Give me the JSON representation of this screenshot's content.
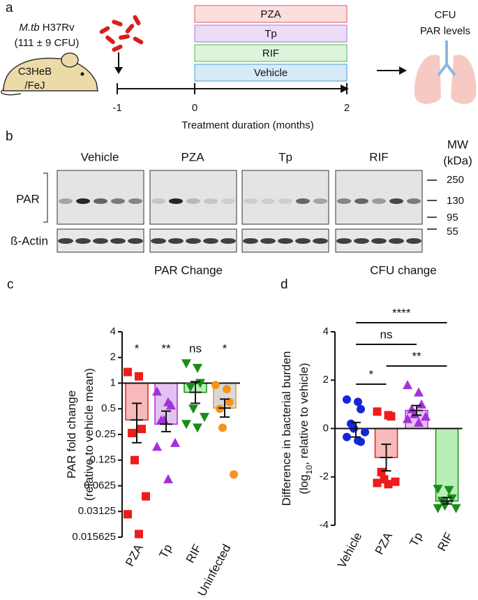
{
  "panel_a": {
    "label": "a",
    "strain_italic": "M.tb",
    "strain": " H37Rv",
    "dose": "(111 ± 9 CFU)",
    "mouse": [
      "C3HeB",
      "/FeJ"
    ],
    "treatments": [
      "PZA",
      "Tp",
      "RIF",
      "Vehicle"
    ],
    "timeline": [
      "-1",
      "0",
      "2"
    ],
    "timeline_label": "Treatment duration (months)",
    "readouts": [
      "CFU",
      "PAR levels"
    ]
  },
  "panel_b": {
    "label": "b",
    "groups": [
      "Vehicle",
      "PZA",
      "Tp",
      "RIF"
    ],
    "rows": [
      "PAR",
      "ß-Actin"
    ],
    "mw_title": [
      "MW",
      "(kDa)"
    ],
    "mw": [
      "250",
      "130",
      "95",
      "55"
    ]
  },
  "chart_data": [
    {
      "type": "bar",
      "panel_label": "c",
      "title": "PAR Change",
      "ylabel": [
        [
          "PAR fold change"
        ],
        [
          "(relative to vehicle mean)"
        ]
      ],
      "log_base": 2,
      "baseline": 1,
      "ylim": [
        0.015625,
        4
      ],
      "yticks": [
        4,
        2,
        1,
        0.5,
        0.25,
        0.125,
        0.0625,
        0.03125,
        0.015625
      ],
      "categories": [
        "PZA",
        "Tp",
        "RIF",
        "Uninfected"
      ],
      "values": [
        0.37,
        0.33,
        0.78,
        0.51
      ],
      "err_low": [
        0.2,
        0.27,
        0.58,
        0.4
      ],
      "err_high": [
        0.58,
        0.47,
        1.04,
        0.65
      ],
      "points": [
        [
          1.35,
          1.2,
          0.29,
          0.26,
          0.125,
          0.047,
          0.029,
          0.017
        ],
        [
          0.8,
          0.6,
          0.55,
          0.37,
          0.37,
          0.2,
          0.18,
          0.075
        ],
        [
          1.7,
          1.5,
          1.0,
          0.9,
          0.5,
          0.4,
          0.33,
          0.3
        ],
        [
          0.95,
          0.85,
          0.6,
          0.5,
          0.3,
          0.085
        ]
      ],
      "colors": [
        "#ee1c1c",
        "#a530d8",
        "#1a8c1a",
        "#f7941d"
      ],
      "fills": [
        "#f7b9b9",
        "#e3c2f2",
        "#b7efb7",
        "#d9d9d9"
      ],
      "markers": [
        "square",
        "triangle-up",
        "triangle-down",
        "circle"
      ],
      "annotations": [
        "*",
        "**",
        "ns",
        "*"
      ]
    },
    {
      "type": "bar",
      "panel_label": "d",
      "title": "CFU change",
      "ylabel": [
        [
          "Difference in bacterial burden"
        ],
        [
          "(log",
          {
            "sub": "10"
          },
          ", relative to vehicle)"
        ]
      ],
      "baseline": 0,
      "ylim": [
        -4,
        4
      ],
      "yticks": [
        4,
        2,
        0,
        -2,
        -4
      ],
      "categories": [
        "Vehicle",
        "PZA",
        "Tp",
        "RIF"
      ],
      "values": [
        0,
        -1.2,
        0.75,
        -3.0
      ],
      "err_low": [
        -0.35,
        -1.75,
        0.55,
        -3.12
      ],
      "err_high": [
        0.25,
        -0.65,
        0.95,
        -2.85
      ],
      "points": [
        [
          1.2,
          1.1,
          0.8,
          0.2,
          0,
          -0.15,
          -0.35,
          -0.5,
          -0.55
        ],
        [
          0.7,
          0.55,
          0.5,
          -1.8,
          -2.1,
          -2.2,
          -2.25,
          -2.3
        ],
        [
          1.8,
          1.5,
          1.0,
          0.8,
          0.6,
          0.5,
          0.4,
          0.25
        ],
        [
          -2.5,
          -2.55,
          -2.9,
          -3.0,
          -3.2,
          -3.3,
          -3.3
        ]
      ],
      "colors": [
        "#1427d8",
        "#ee1c1c",
        "#a530d8",
        "#1a8c1a"
      ],
      "fills": [
        "#d6ddf7",
        "#f7b9b9",
        "#e3c2f2",
        "#b7efb7"
      ],
      "markers": [
        "circle",
        "square",
        "triangle-up",
        "triangle-down"
      ],
      "comparisons": [
        {
          "pair": [
            "Vehicle",
            "RIF"
          ],
          "label": "****"
        },
        {
          "pair": [
            "Vehicle",
            "Tp"
          ],
          "label": "ns"
        },
        {
          "pair": [
            "PZA",
            "RIF"
          ],
          "label": "**"
        },
        {
          "pair": [
            "Vehicle",
            "PZA"
          ],
          "label": "*"
        }
      ]
    }
  ]
}
